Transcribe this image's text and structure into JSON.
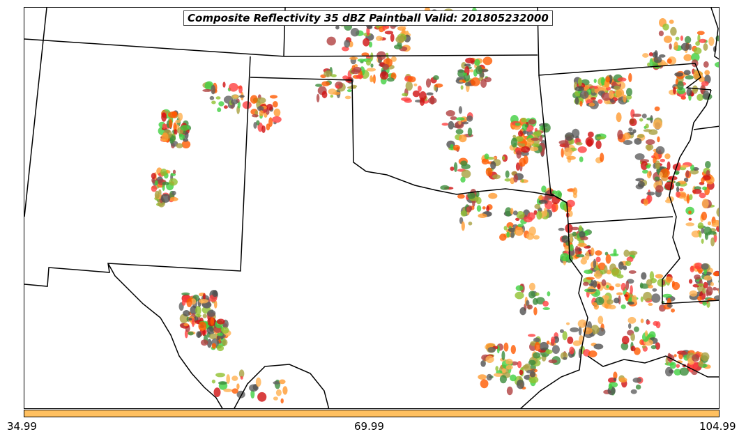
{
  "title": "Composite Reflectivity 35 dBZ Paintball Valid: 201805232000",
  "colorbar": {
    "color": "#ffc060",
    "tick_labels": [
      "34.99",
      "69.99",
      "104.99"
    ]
  },
  "member_colors": [
    "#ff4040",
    "#40d040",
    "#505050",
    "#ff9a30",
    "#a8a040",
    "#3c8c3c",
    "#b04040",
    "#ff5a00",
    "#90c030",
    "#d01010",
    "#ffb050",
    "#606060"
  ]
}
